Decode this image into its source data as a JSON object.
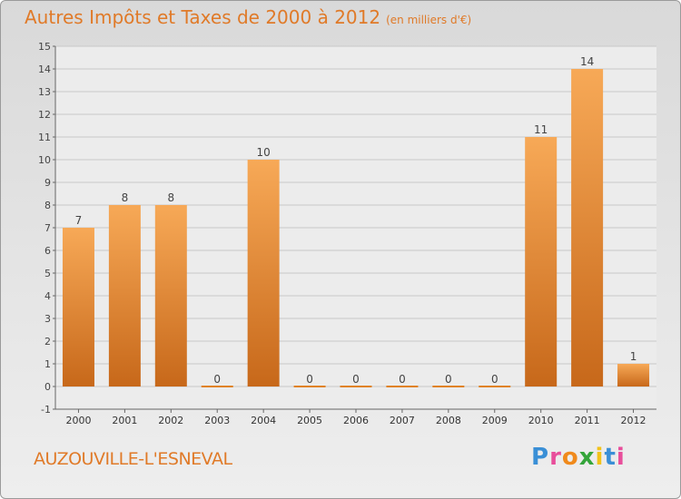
{
  "title": "Autres Impôts et Taxes de 2000 à 2012",
  "subtitle": "(en milliers d'€)",
  "place_name": "AUZOUVILLE-L'ESNEVAL",
  "logo_text": "Proxiti",
  "colors": {
    "title": "#e07a28",
    "bar_top": "#f7a957",
    "bar_bottom": "#c7681a",
    "grid": "#c8c8c8",
    "zero_bar": "#e0821f"
  },
  "chart_data": {
    "type": "bar",
    "categories": [
      "2000",
      "2001",
      "2002",
      "2003",
      "2004",
      "2005",
      "2006",
      "2007",
      "2008",
      "2009",
      "2010",
      "2011",
      "2012"
    ],
    "values": [
      7,
      8,
      8,
      0,
      10,
      0,
      0,
      0,
      0,
      0,
      11,
      14,
      1
    ],
    "data_labels": [
      "7",
      "8",
      "8",
      "0",
      "10",
      "0",
      "0",
      "0",
      "0",
      "0",
      "11",
      "14",
      "1"
    ],
    "ylim": [
      -1,
      15
    ],
    "yticks": [
      -1,
      0,
      1,
      2,
      3,
      4,
      5,
      6,
      7,
      8,
      9,
      10,
      11,
      12,
      13,
      14,
      15
    ],
    "grid": true
  }
}
